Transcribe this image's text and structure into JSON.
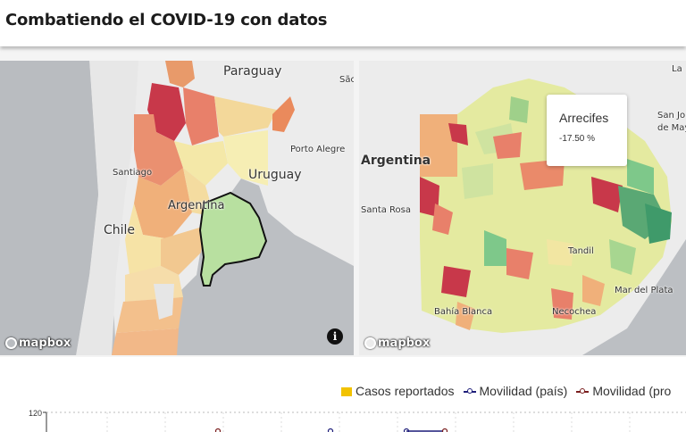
{
  "header": {
    "title": "Combatiendo el COVID-19 con datos"
  },
  "left_map": {
    "labels": {
      "paraguay": "Paraguay",
      "sao": "São",
      "porto_alegre": "Porto Alegre",
      "uruguay": "Uruguay",
      "argentina": "Argentina",
      "santiago": "Santiago",
      "chile": "Chile"
    },
    "attribution": "mapbox",
    "info_glyph": "i",
    "highlighted_region": "Buenos Aires"
  },
  "right_map": {
    "labels": {
      "la": "La",
      "san_jo": "San Jo",
      "de_may": "de May",
      "argentina": "Argentina",
      "santa_rosa": "Santa Rosa",
      "tandil": "Tandil",
      "mar_del_plata": "Mar del Plata",
      "bahia_blanca": "Bahía Blanca",
      "necochea": "Necochea"
    },
    "attribution": "mapbox",
    "tooltip": {
      "name": "Arrecifes",
      "value": "-17.50 %"
    }
  },
  "colors": {
    "low": "#7ec88a",
    "mid": "#f2e6a2",
    "high": "#f0a070",
    "max": "#c8384a",
    "highlight_fill": "#b8e0a0",
    "reported_cases": "#f2c200",
    "mobility_country": "#1f1f7a",
    "mobility_province": "#7a1f1f"
  },
  "chart": {
    "legend": {
      "casos": "Casos reportados",
      "movilidad_pais": "Movilidad (país)",
      "movilidad_prov": "Movilidad (pro"
    },
    "y_tick": "120"
  }
}
